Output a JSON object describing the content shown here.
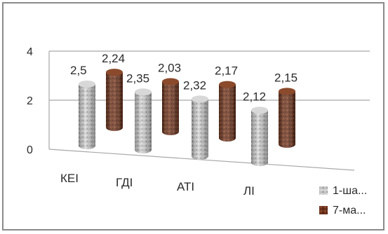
{
  "chart_data": {
    "type": "bar",
    "style": "3d-cylinder",
    "categories": [
      "КЕІ",
      "ГДІ",
      "АТІ",
      "ЛІ"
    ],
    "series": [
      {
        "name": "1-ша...",
        "values": [
          2.5,
          2.35,
          2.32,
          2.12
        ],
        "labels": [
          "2,5",
          "2,35",
          "2,32",
          "2,12"
        ],
        "color": "#b5b5b5"
      },
      {
        "name": "7-ма...",
        "values": [
          2.24,
          2.03,
          2.17,
          2.15
        ],
        "labels": [
          "2,24",
          "2,03",
          "2,17",
          "2,15"
        ],
        "color": "#6b2e18"
      }
    ],
    "y_ticks": [
      "0",
      "2",
      "4"
    ],
    "ylim": [
      0,
      4
    ],
    "grid": true,
    "legend_position": "bottom-right",
    "title": "",
    "xlabel": "",
    "ylabel": ""
  }
}
